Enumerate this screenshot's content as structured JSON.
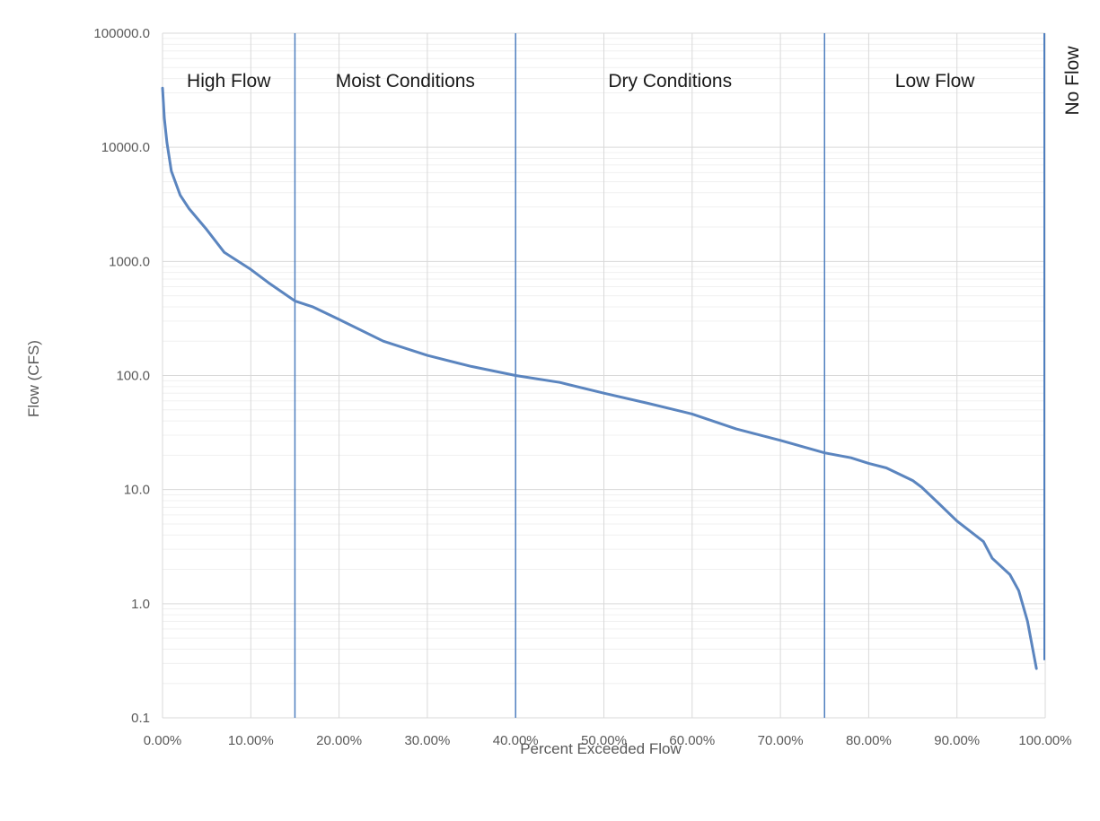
{
  "chart_data": {
    "type": "line",
    "title": "",
    "xlabel": "Percent Exceeded Flow",
    "ylabel": "Flow (CFS)",
    "x_scale": "linear",
    "y_scale": "log",
    "xlim": [
      0,
      100
    ],
    "ylim": [
      0.1,
      100000
    ],
    "x_tick_labels": [
      "0.00%",
      "10.00%",
      "20.00%",
      "30.00%",
      "40.00%",
      "50.00%",
      "60.00%",
      "70.00%",
      "80.00%",
      "90.00%",
      "100.00%"
    ],
    "x_tick_values": [
      0,
      10,
      20,
      30,
      40,
      50,
      60,
      70,
      80,
      90,
      100
    ],
    "y_tick_labels": [
      "0.1",
      "1.0",
      "10.0",
      "100.0",
      "1000.0",
      "10000.0",
      "100000.0"
    ],
    "y_tick_values": [
      0.1,
      1,
      10,
      100,
      1000,
      10000,
      100000
    ],
    "grid": true,
    "legend": "none",
    "line_color": "#5b85bf",
    "boundary_color": "#4f7fbf",
    "boundaries": [
      15,
      40,
      75,
      100
    ],
    "regions": [
      {
        "label": "High Flow",
        "x_center": 7.5
      },
      {
        "label": "Moist Conditions",
        "x_center": 27.5
      },
      {
        "label": "Dry Conditions",
        "x_center": 57.5
      },
      {
        "label": "Low Flow",
        "x_center": 87.5
      }
    ],
    "no_flow_label": "No Flow",
    "series": [
      {
        "x": [
          0,
          0.2,
          0.5,
          1,
          2,
          3,
          5,
          7,
          10,
          12,
          15,
          17,
          20,
          25,
          30,
          35,
          40,
          45,
          50,
          55,
          60,
          65,
          70,
          75,
          78,
          80,
          82,
          85,
          86,
          88,
          90,
          93,
          94,
          96,
          97,
          98,
          99
        ],
        "y": [
          33000,
          18000,
          11000,
          6200,
          3800,
          2900,
          1900,
          1200,
          850,
          650,
          450,
          400,
          310,
          200,
          150,
          120,
          100,
          87,
          70,
          57,
          46,
          34,
          27,
          21,
          19,
          17,
          15.5,
          12,
          10.5,
          7.5,
          5.3,
          3.5,
          2.5,
          1.8,
          1.3,
          0.7,
          0.27
        ]
      }
    ]
  }
}
